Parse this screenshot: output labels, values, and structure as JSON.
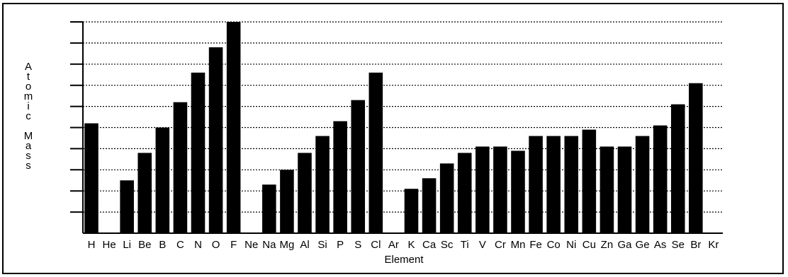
{
  "chart_data": {
    "type": "bar",
    "title": "",
    "xlabel": "Element",
    "ylabel": "Atomic Mass",
    "categories": [
      "H",
      "He",
      "Li",
      "Be",
      "B",
      "C",
      "N",
      "O",
      "F",
      "Ne",
      "Na",
      "Mg",
      "Al",
      "Si",
      "P",
      "S",
      "Cl",
      "Ar",
      "K",
      "Ca",
      "Sc",
      "Ti",
      "V",
      "Cr",
      "Mn",
      "Fe",
      "Co",
      "Ni",
      "Cu",
      "Zn",
      "Ga",
      "Ge",
      "As",
      "Se",
      "Br",
      "Kr"
    ],
    "values": [
      5.2,
      0,
      2.5,
      3.8,
      5.0,
      6.2,
      7.6,
      8.8,
      10.0,
      0,
      2.3,
      3.0,
      3.8,
      4.6,
      5.3,
      6.3,
      7.6,
      0,
      2.1,
      2.6,
      3.3,
      3.8,
      4.1,
      4.1,
      3.9,
      4.6,
      4.6,
      4.6,
      4.9,
      4.1,
      4.1,
      4.6,
      5.1,
      6.1,
      7.1,
      0
    ],
    "ylim": [
      0,
      10
    ],
    "grid": true,
    "bar_color": "#000000",
    "grid_color": "#000000"
  }
}
